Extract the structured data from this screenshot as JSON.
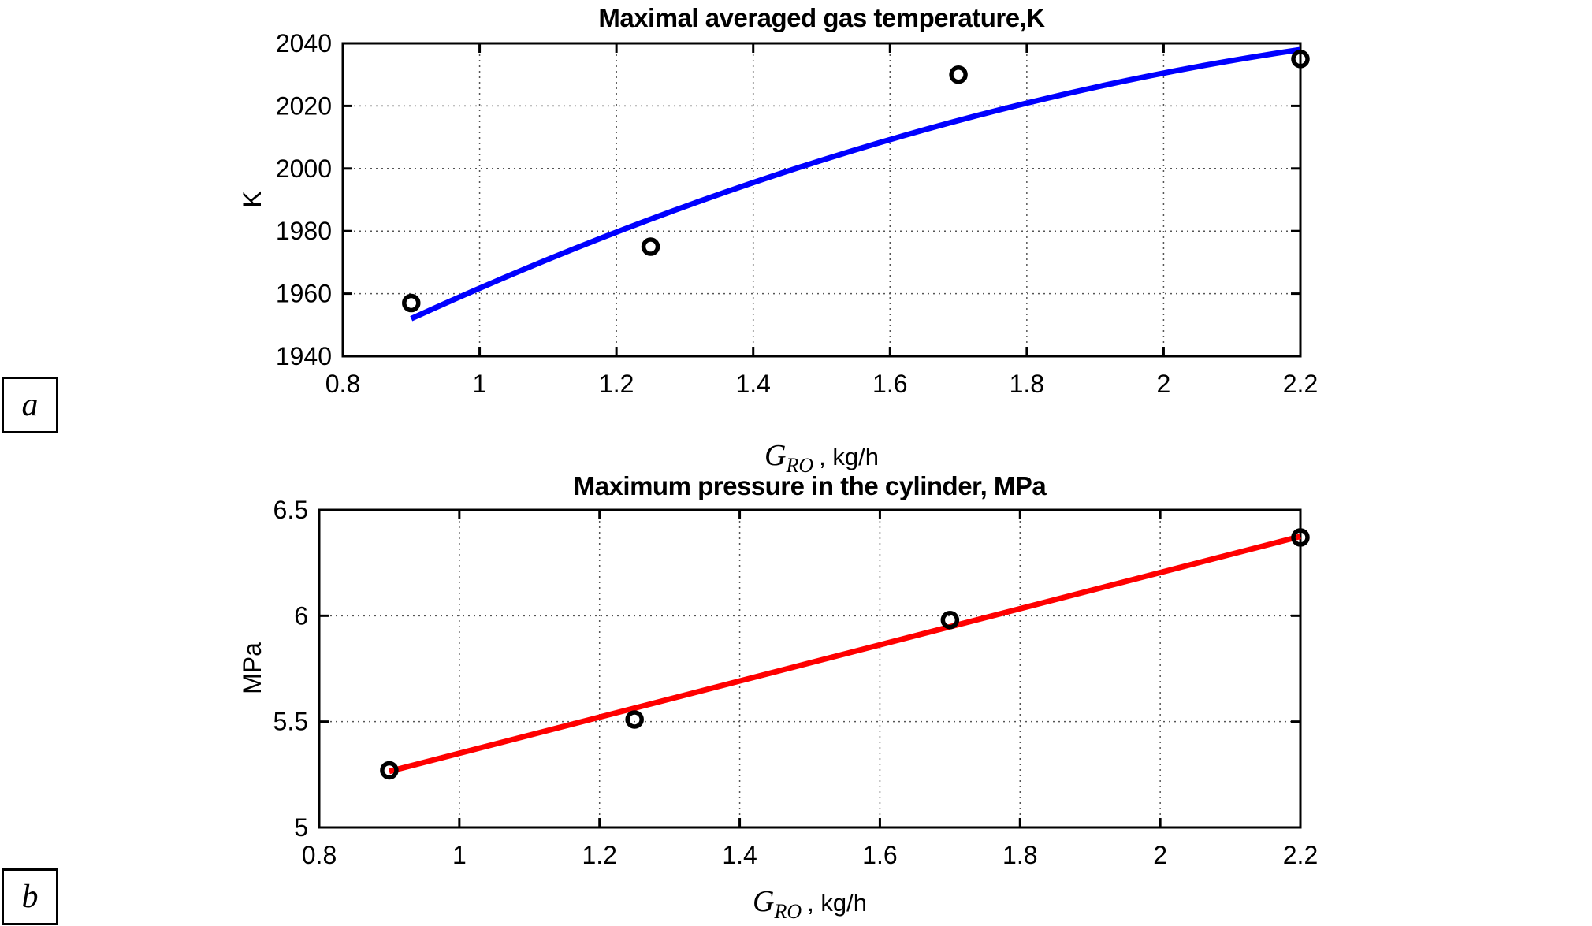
{
  "figure": {
    "background": "#ffffff",
    "panel_labels": [
      "a",
      "b"
    ]
  },
  "chart_data": [
    {
      "type": "scatter",
      "title": "Maximal averaged gas temperature,K",
      "ylabel": "K",
      "xlabel_symbol": "G",
      "xlabel_subscript": "RO",
      "xlabel_units": ", kg/h",
      "xlim": [
        0.8,
        2.2
      ],
      "ylim": [
        1940,
        2040
      ],
      "x_ticks": [
        "0.8",
        "1",
        "1.2",
        "1.4",
        "1.6",
        "1.8",
        "2",
        "2.2"
      ],
      "x_tick_values": [
        0.8,
        1,
        1.2,
        1.4,
        1.6,
        1.8,
        2,
        2.2
      ],
      "y_ticks": [
        "1940",
        "1960",
        "1980",
        "2000",
        "2020",
        "2040"
      ],
      "y_tick_values": [
        1940,
        1960,
        1980,
        2000,
        2020,
        2040
      ],
      "grid": true,
      "line_color": "#0000ff",
      "marker_color": "#000000",
      "fit_line": {
        "shape": "quadratic",
        "points": [
          [
            0.9,
            1952
          ],
          [
            1.55,
            2006
          ],
          [
            2.2,
            2038
          ]
        ]
      },
      "data_points": [
        [
          0.9,
          1957
        ],
        [
          1.25,
          1975
        ],
        [
          1.7,
          2030
        ],
        [
          2.2,
          2035
        ]
      ]
    },
    {
      "type": "scatter",
      "title": "Maximum pressure in the cylinder, MPa",
      "ylabel": "MPa",
      "xlabel_symbol": "G",
      "xlabel_subscript": "RO",
      "xlabel_units": ", kg/h",
      "xlim": [
        0.8,
        2.2
      ],
      "ylim": [
        5,
        6.5
      ],
      "x_ticks": [
        "0.8",
        "1",
        "1.2",
        "1.4",
        "1.6",
        "1.8",
        "2",
        "2.2"
      ],
      "x_tick_values": [
        0.8,
        1,
        1.2,
        1.4,
        1.6,
        1.8,
        2,
        2.2
      ],
      "y_ticks": [
        "5",
        "5.5",
        "6",
        "6.5"
      ],
      "y_tick_values": [
        5,
        5.5,
        6,
        6.5
      ],
      "grid": true,
      "line_color": "#ff0000",
      "marker_color": "#000000",
      "fit_line": {
        "shape": "linear",
        "points": [
          [
            0.9,
            5.265
          ],
          [
            2.2,
            6.375
          ]
        ]
      },
      "data_points": [
        [
          0.9,
          5.27
        ],
        [
          1.25,
          5.51
        ],
        [
          1.7,
          5.98
        ],
        [
          2.2,
          6.37
        ]
      ]
    }
  ]
}
